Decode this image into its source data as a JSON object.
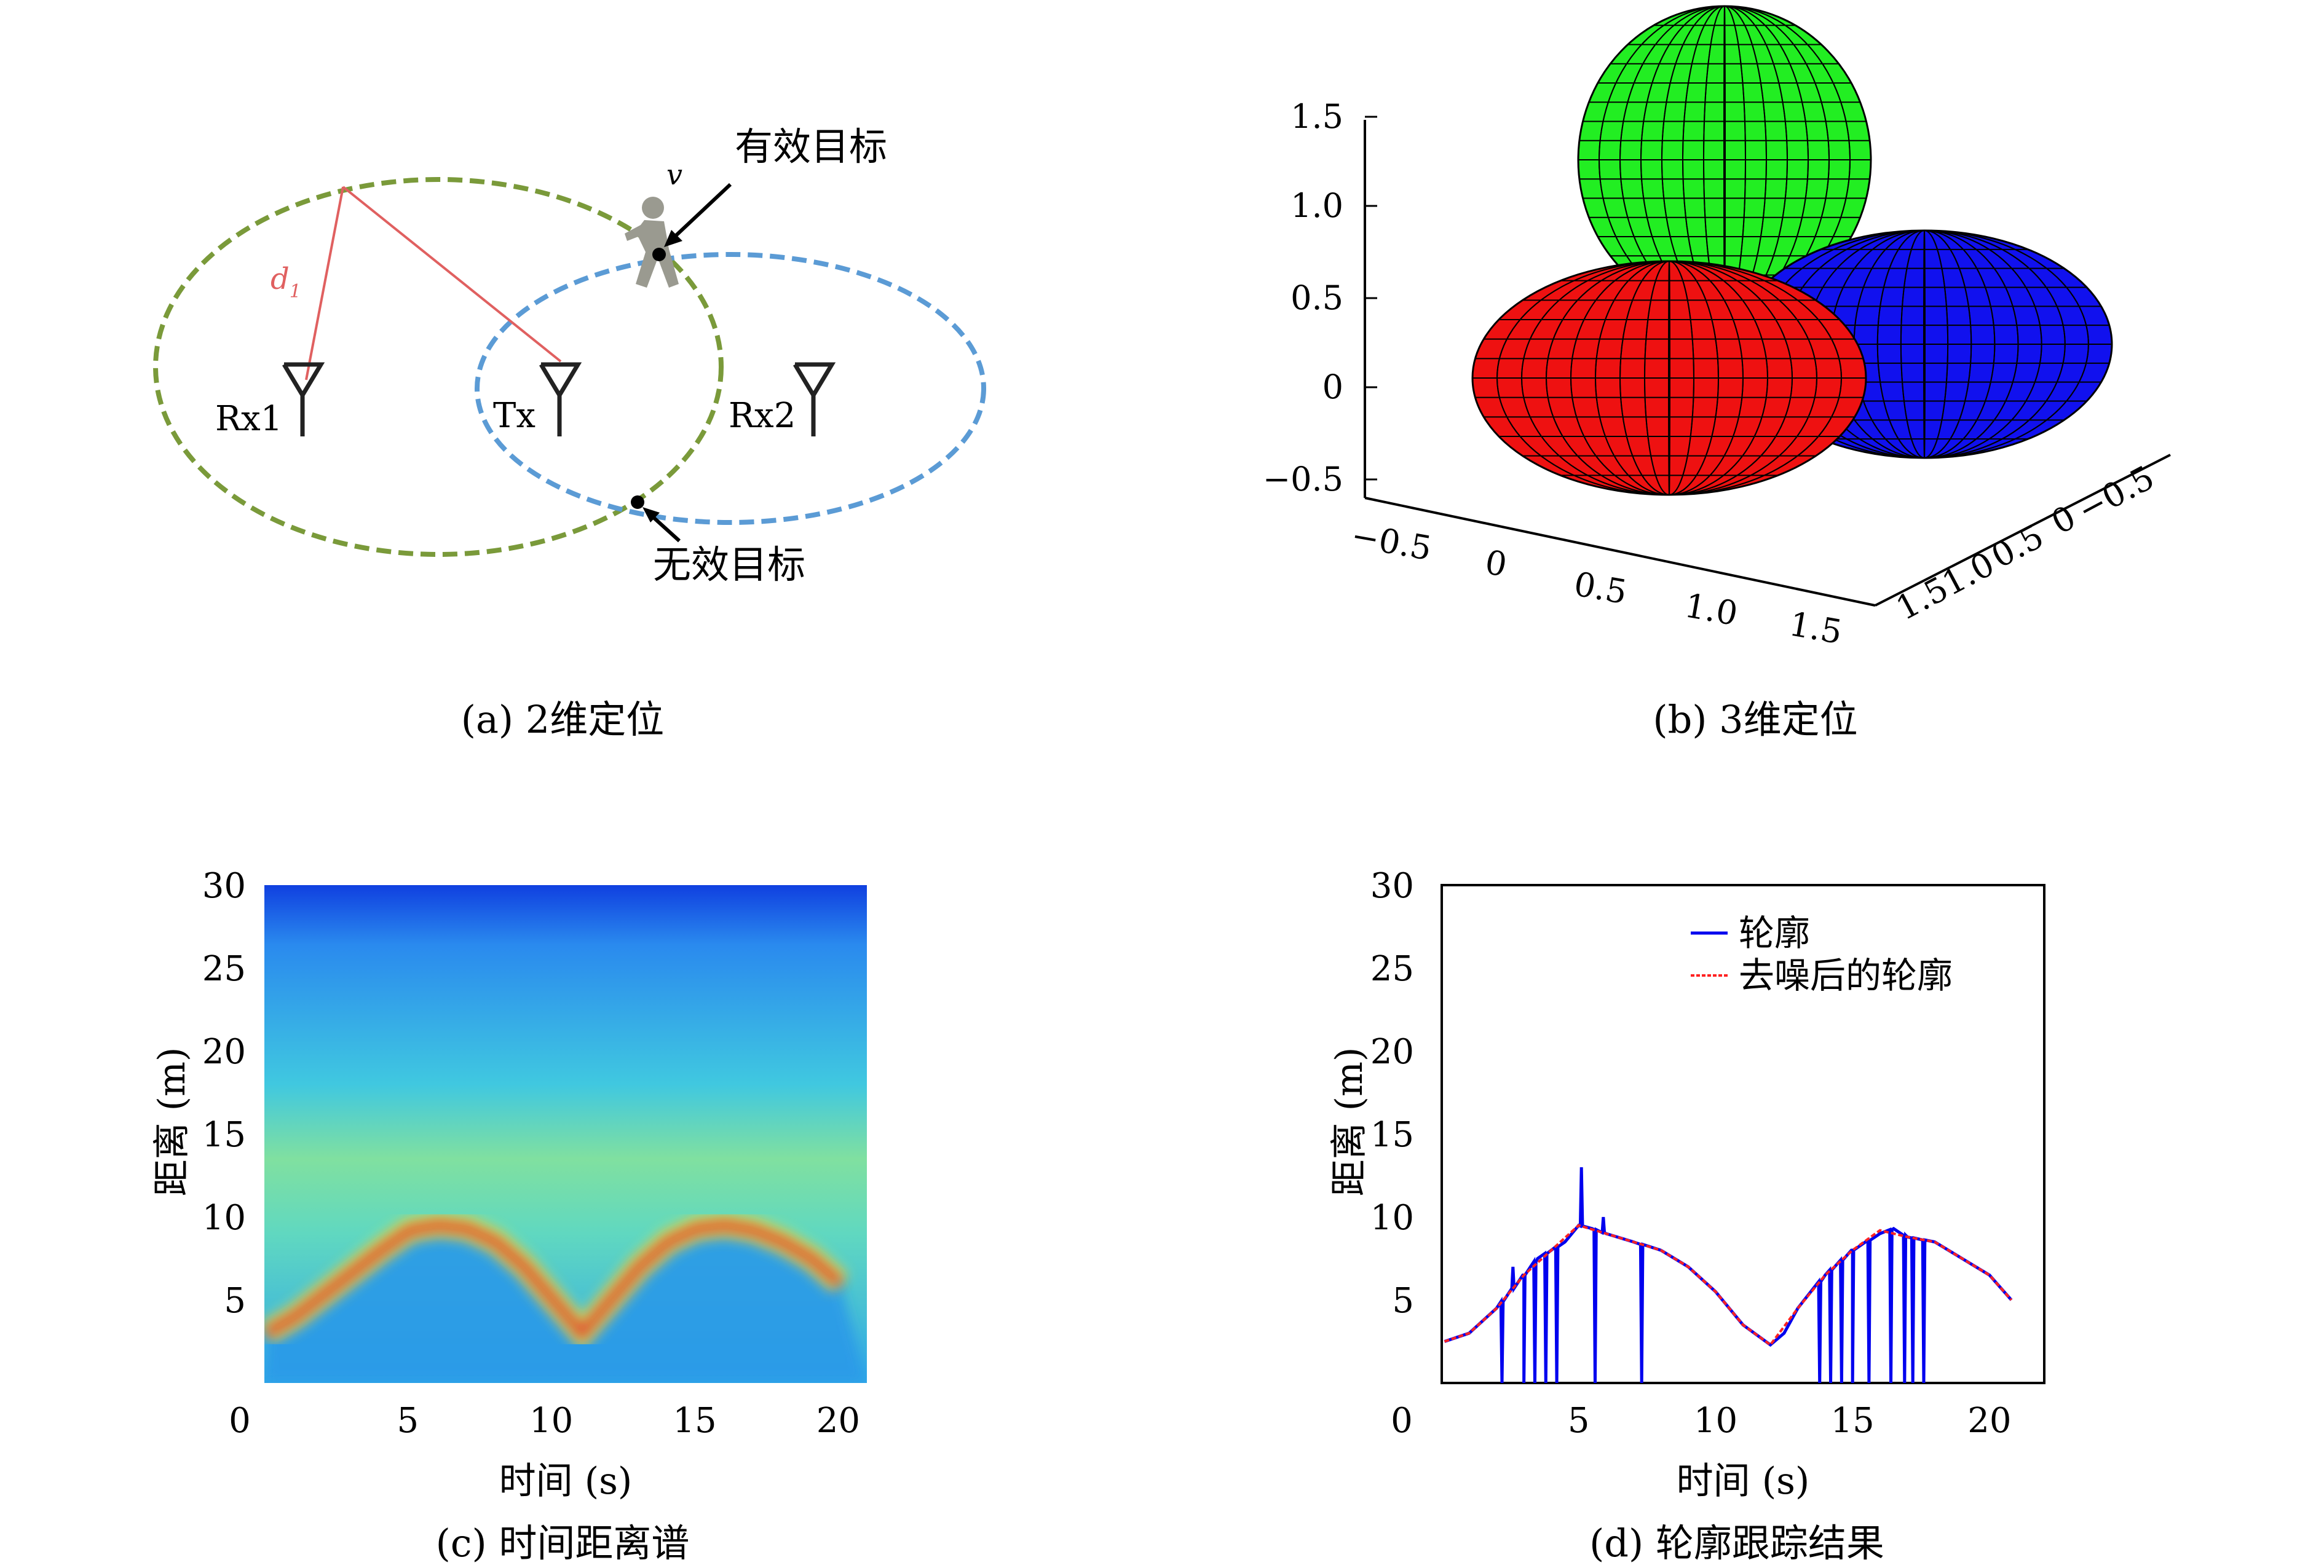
{
  "captions": {
    "a": "(a) 2维定位",
    "b": "(b) 3维定位",
    "c": "(c) 时间距离谱",
    "d": "(d) 轮廓跟踪结果"
  },
  "panel_a": {
    "valid_target": "有效目标",
    "invalid_target": "无效目标",
    "velocity": "v",
    "distance": "d",
    "distance_sub": "1",
    "rx1": "Rx1",
    "tx": "Tx",
    "rx2": "Rx2",
    "colors": {
      "ellipse1": "#7a9a3a",
      "ellipse2": "#5b9bd5",
      "distance_line": "#e06060"
    }
  },
  "chart_data": [
    {
      "type": "surface",
      "panel": "b",
      "z_ticks": [
        "1.5",
        "1.0",
        "0.5",
        "0",
        "−0.5"
      ],
      "x_ticks": [
        "−0.5",
        "0",
        "0.5",
        "1.0",
        "1.5"
      ],
      "y_ticks": [
        "1.5",
        "1.0",
        "0.5",
        "0",
        "−0.5"
      ],
      "lobes": [
        {
          "color": "#22ee22",
          "name": "green"
        },
        {
          "color": "#ee1111",
          "name": "red"
        },
        {
          "color": "#1111ee",
          "name": "blue"
        }
      ]
    },
    {
      "type": "heatmap",
      "panel": "c",
      "xlabel": "时间 (s)",
      "ylabel": "距离 (m)",
      "xlim": [
        0,
        21
      ],
      "ylim": [
        0,
        30
      ],
      "x_ticks": [
        "0",
        "5",
        "10",
        "15",
        "20"
      ],
      "y_ticks": [
        "30",
        "25",
        "20",
        "15",
        "10",
        "5"
      ],
      "ridge": {
        "x": [
          0.5,
          1.5,
          3,
          4.5,
          5.5,
          6.5,
          7.5,
          8.5,
          9.5,
          10.5,
          11.5,
          12.5,
          13.5,
          14.5,
          15.5,
          16.5,
          17.5,
          18.5,
          19.5,
          20.5
        ],
        "y": [
          3,
          4,
          6,
          8,
          9.2,
          9.5,
          9.3,
          8.5,
          7,
          5,
          3,
          5,
          7,
          8.5,
          9.3,
          9.5,
          9.2,
          8.5,
          7.5,
          6
        ]
      }
    },
    {
      "type": "line",
      "panel": "d",
      "xlabel": "时间 (s)",
      "ylabel": "距离 (m)",
      "xlim": [
        0,
        22
      ],
      "ylim": [
        0,
        30
      ],
      "x_ticks": [
        "0",
        "5",
        "10",
        "15",
        "20"
      ],
      "y_ticks": [
        "30",
        "25",
        "20",
        "15",
        "10",
        "5"
      ],
      "legend_position": "top-right",
      "series": [
        {
          "name": "轮廓",
          "color": "#0000ee",
          "x": [
            0.1,
            1,
            2,
            3,
            3.5,
            4,
            4.5,
            5,
            5.5,
            6,
            7,
            8,
            9,
            10,
            11,
            12,
            12.5,
            13,
            14,
            15,
            16,
            16.5,
            17,
            18,
            19,
            20,
            20.8
          ],
          "y": [
            2.5,
            3,
            4.5,
            6.5,
            7.5,
            8,
            8.5,
            9.5,
            9.3,
            9,
            8.5,
            8,
            7,
            5.5,
            3.5,
            2.3,
            3,
            4.5,
            6.5,
            8,
            9,
            9.3,
            8.8,
            8.5,
            7.5,
            6.5,
            5
          ],
          "spikes": [
            {
              "x": 2.2,
              "y": 0
            },
            {
              "x": 2.6,
              "y": 7
            },
            {
              "x": 3.0,
              "y": 0
            },
            {
              "x": 3.4,
              "y": 0
            },
            {
              "x": 3.8,
              "y": 0
            },
            {
              "x": 4.2,
              "y": 0
            },
            {
              "x": 5.1,
              "y": 13
            },
            {
              "x": 5.6,
              "y": 0
            },
            {
              "x": 5.9,
              "y": 10
            },
            {
              "x": 7.3,
              "y": 0
            },
            {
              "x": 13.8,
              "y": 0
            },
            {
              "x": 14.2,
              "y": 0
            },
            {
              "x": 14.6,
              "y": 0
            },
            {
              "x": 15.0,
              "y": 0
            },
            {
              "x": 15.6,
              "y": 0
            },
            {
              "x": 16.4,
              "y": 0
            },
            {
              "x": 16.9,
              "y": 0
            },
            {
              "x": 17.2,
              "y": 0
            },
            {
              "x": 17.6,
              "y": 0
            }
          ]
        },
        {
          "name": "去噪后的轮廓",
          "color": "#ff2222",
          "x": [
            0.1,
            1,
            2,
            3,
            4,
            5,
            6,
            7,
            8,
            9,
            10,
            11,
            12,
            13,
            14,
            15,
            16,
            17,
            18,
            19,
            20,
            20.8
          ],
          "y": [
            2.5,
            3,
            4.5,
            6.5,
            8,
            9.5,
            9,
            8.5,
            8,
            7,
            5.5,
            3.5,
            2.3,
            4.5,
            6.5,
            8,
            9.2,
            8.8,
            8.5,
            7.5,
            6.5,
            5
          ]
        }
      ]
    }
  ]
}
